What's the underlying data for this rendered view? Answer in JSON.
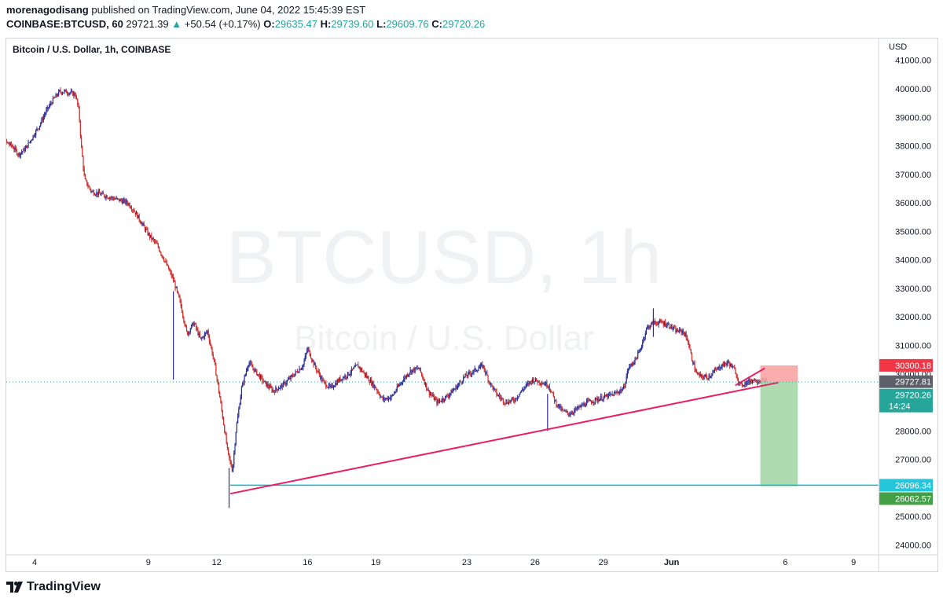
{
  "header": {
    "author": "morenagodisang",
    "published_text": "published on TradingView.com, June 04, 2022 15:45:39 EST",
    "symbol": "COINBASE:BTCUSD, 60",
    "last": "29721.39",
    "change": "+50.54 (+0.17%)",
    "o_label": "O:",
    "o_value": "29635.47",
    "h_label": "H:",
    "h_value": "29739.60",
    "l_label": "L:",
    "l_value": "29609.76",
    "c_label": "C:",
    "c_value": "29720.26"
  },
  "chart_title": "Bitcoin / U.S. Dollar, 1h, COINBASE",
  "footer": {
    "brand": "TradingView"
  },
  "colors": {
    "up": "#26a69a",
    "down": "#ef5350",
    "candle": "#2a2e99",
    "trendline": "#e91e63",
    "hline": "#00bcd4",
    "target_zone": "#a5d6a7",
    "stop_zone": "#f8a5a4"
  },
  "chart_data": {
    "type": "candlestick",
    "currency": "USD",
    "watermark": [
      "BTCUSD, 1h",
      "Bitcoin / U.S. Dollar"
    ],
    "ylim": [
      23700,
      41400
    ],
    "y_ticks": [
      "41000.00",
      "40000.00",
      "39000.00",
      "38000.00",
      "37000.00",
      "36000.00",
      "35000.00",
      "34000.00",
      "33000.00",
      "32000.00",
      "31000.00",
      "30000.00",
      "29000.00",
      "28000.00",
      "27000.00",
      "26000.00",
      "25000.00",
      "24000.00"
    ],
    "x_ticks": [
      {
        "label": "4",
        "day": 4
      },
      {
        "label": "9",
        "day": 9
      },
      {
        "label": "12",
        "day": 12
      },
      {
        "label": "16",
        "day": 16
      },
      {
        "label": "19",
        "day": 19
      },
      {
        "label": "23",
        "day": 23
      },
      {
        "label": "26",
        "day": 26
      },
      {
        "label": "29",
        "day": 29
      },
      {
        "label": "Jun",
        "day": 32
      },
      {
        "label": "6",
        "day": 37
      },
      {
        "label": "9",
        "day": 40
      }
    ],
    "price_path": [
      [
        2.1,
        38400
      ],
      [
        2.6,
        38200
      ],
      [
        3.0,
        38000
      ],
      [
        3.3,
        37700
      ],
      [
        3.6,
        37900
      ],
      [
        3.9,
        38300
      ],
      [
        4.2,
        38700
      ],
      [
        4.5,
        39200
      ],
      [
        4.8,
        39600
      ],
      [
        5.1,
        39900
      ],
      [
        5.4,
        39900
      ],
      [
        5.8,
        39800
      ],
      [
        5.95,
        39200
      ],
      [
        6.05,
        38000
      ],
      [
        6.2,
        36800
      ],
      [
        6.5,
        36400
      ],
      [
        6.9,
        36300
      ],
      [
        7.3,
        36200
      ],
      [
        7.7,
        36100
      ],
      [
        8.1,
        36000
      ],
      [
        8.4,
        35700
      ],
      [
        8.7,
        35300
      ],
      [
        9.0,
        34900
      ],
      [
        9.4,
        34500
      ],
      [
        9.7,
        34000
      ],
      [
        10.1,
        33300
      ],
      [
        10.4,
        32500
      ],
      [
        10.7,
        31400
      ],
      [
        11.0,
        31800
      ],
      [
        11.3,
        31200
      ],
      [
        11.6,
        31500
      ],
      [
        11.9,
        30400
      ],
      [
        12.1,
        29400
      ],
      [
        12.3,
        28300
      ],
      [
        12.5,
        27200
      ],
      [
        12.7,
        26600
      ],
      [
        12.85,
        28000
      ],
      [
        13.1,
        29500
      ],
      [
        13.4,
        30400
      ],
      [
        13.7,
        30100
      ],
      [
        14.1,
        29700
      ],
      [
        14.5,
        29400
      ],
      [
        14.9,
        29600
      ],
      [
        15.3,
        29900
      ],
      [
        15.8,
        30300
      ],
      [
        16.0,
        30900
      ],
      [
        16.3,
        30300
      ],
      [
        16.7,
        29700
      ],
      [
        17.0,
        29500
      ],
      [
        17.4,
        29800
      ],
      [
        17.8,
        30000
      ],
      [
        18.2,
        30300
      ],
      [
        18.6,
        29900
      ],
      [
        19.0,
        29500
      ],
      [
        19.3,
        29100
      ],
      [
        19.7,
        29200
      ],
      [
        20.1,
        29700
      ],
      [
        20.5,
        30100
      ],
      [
        20.9,
        30200
      ],
      [
        21.3,
        29400
      ],
      [
        21.7,
        29000
      ],
      [
        22.1,
        29200
      ],
      [
        22.5,
        29500
      ],
      [
        22.9,
        29900
      ],
      [
        23.3,
        30100
      ],
      [
        23.7,
        30300
      ],
      [
        24.0,
        29700
      ],
      [
        24.3,
        29300
      ],
      [
        24.7,
        29000
      ],
      [
        25.1,
        29100
      ],
      [
        25.5,
        29500
      ],
      [
        25.9,
        29800
      ],
      [
        26.3,
        29700
      ],
      [
        26.6,
        29600
      ],
      [
        26.9,
        29000
      ],
      [
        27.2,
        28700
      ],
      [
        27.5,
        28600
      ],
      [
        27.9,
        28800
      ],
      [
        28.3,
        29000
      ],
      [
        28.7,
        29100
      ],
      [
        29.1,
        29200
      ],
      [
        29.5,
        29300
      ],
      [
        29.9,
        29500
      ],
      [
        30.1,
        30200
      ],
      [
        30.4,
        30500
      ],
      [
        30.6,
        30800
      ],
      [
        30.9,
        31600
      ],
      [
        31.2,
        31800
      ],
      [
        31.6,
        31800
      ],
      [
        31.9,
        31700
      ],
      [
        32.2,
        31500
      ],
      [
        32.5,
        31500
      ],
      [
        32.7,
        31200
      ],
      [
        32.9,
        30500
      ],
      [
        33.1,
        30000
      ],
      [
        33.3,
        29900
      ],
      [
        33.6,
        29900
      ],
      [
        33.9,
        30100
      ],
      [
        34.2,
        30300
      ],
      [
        34.5,
        30400
      ],
      [
        34.8,
        30100
      ],
      [
        35.0,
        29600
      ],
      [
        35.3,
        29700
      ],
      [
        35.6,
        29800
      ],
      [
        35.9,
        29750
      ],
      [
        36.2,
        29720
      ]
    ],
    "volatility": 120,
    "spikes": [
      {
        "day": 12.55,
        "low": 25300,
        "high": 26700
      },
      {
        "day": 26.55,
        "low": 28000,
        "high": 29300
      },
      {
        "day": 31.2,
        "low": 31300,
        "high": 32300
      },
      {
        "day": 10.1,
        "low": 29800,
        "high": 32900
      }
    ],
    "trendlines": [
      {
        "from": [
          12.6,
          25800
        ],
        "to": [
          36.7,
          29700
        ]
      },
      {
        "from": [
          34.8,
          29600
        ],
        "to": [
          36.1,
          30200
        ]
      }
    ],
    "horizontal_line": {
      "start_day": 12.6,
      "value": 26096.34
    },
    "last_price_dotted": 29720.26,
    "position": {
      "start_day": 35.9,
      "end_day": 37.55,
      "entry": 29727.81,
      "stop": 30300.18,
      "target": 26062.57
    },
    "price_labels": [
      {
        "text": "30300.18",
        "value": 30300.18,
        "color": "#f23645"
      },
      {
        "text": "29727.81",
        "value": 29727.81,
        "color": "#5d606b"
      },
      {
        "text": "29720.26",
        "value": 29720.26,
        "color": "#26a69a",
        "sub": "14:24"
      },
      {
        "text": "26096.34",
        "value": 26096.34,
        "color": "#26c6da"
      },
      {
        "text": "26062.57",
        "value": 26062.57,
        "color": "#43a047"
      }
    ]
  }
}
